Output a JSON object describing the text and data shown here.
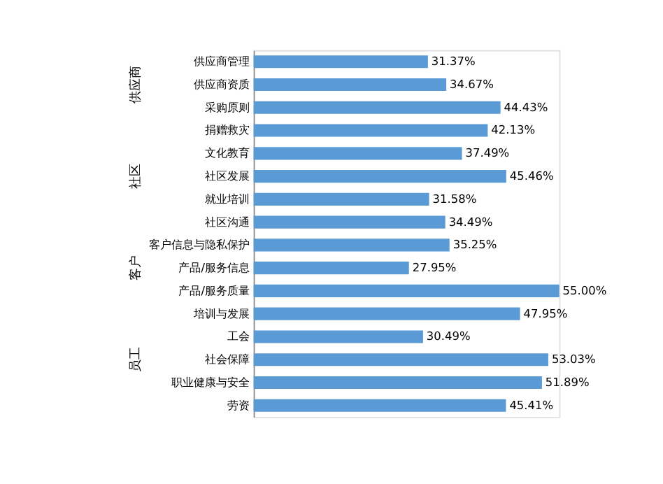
{
  "chart_data": {
    "type": "bar",
    "orientation": "horizontal",
    "categories": [
      "供应商管理",
      "供应商资质",
      "采购原则",
      "捐赠救灾",
      "文化教育",
      "社区发展",
      "就业培训",
      "社区沟通",
      "客户信息与隐私保护",
      "产品/服务信息",
      "产品/服务质量",
      "培训与发展",
      "工会",
      "社会保障",
      "职业健康与安全",
      "劳资"
    ],
    "values": [
      31.37,
      34.67,
      44.43,
      42.13,
      37.49,
      45.46,
      31.58,
      34.49,
      35.25,
      27.95,
      55.0,
      47.95,
      30.49,
      53.03,
      51.89,
      45.41
    ],
    "value_labels": [
      "31.37%",
      "34.67%",
      "44.43%",
      "42.13%",
      "37.49%",
      "45.46%",
      "31.58%",
      "34.49%",
      "35.25%",
      "27.95%",
      "55.00%",
      "47.95%",
      "30.49%",
      "53.03%",
      "51.89%",
      "45.41%"
    ],
    "color": "#5b9bd5",
    "annotations": [
      "供应商",
      "社区",
      "客户",
      "员工"
    ],
    "tick_labels": "y"
  }
}
